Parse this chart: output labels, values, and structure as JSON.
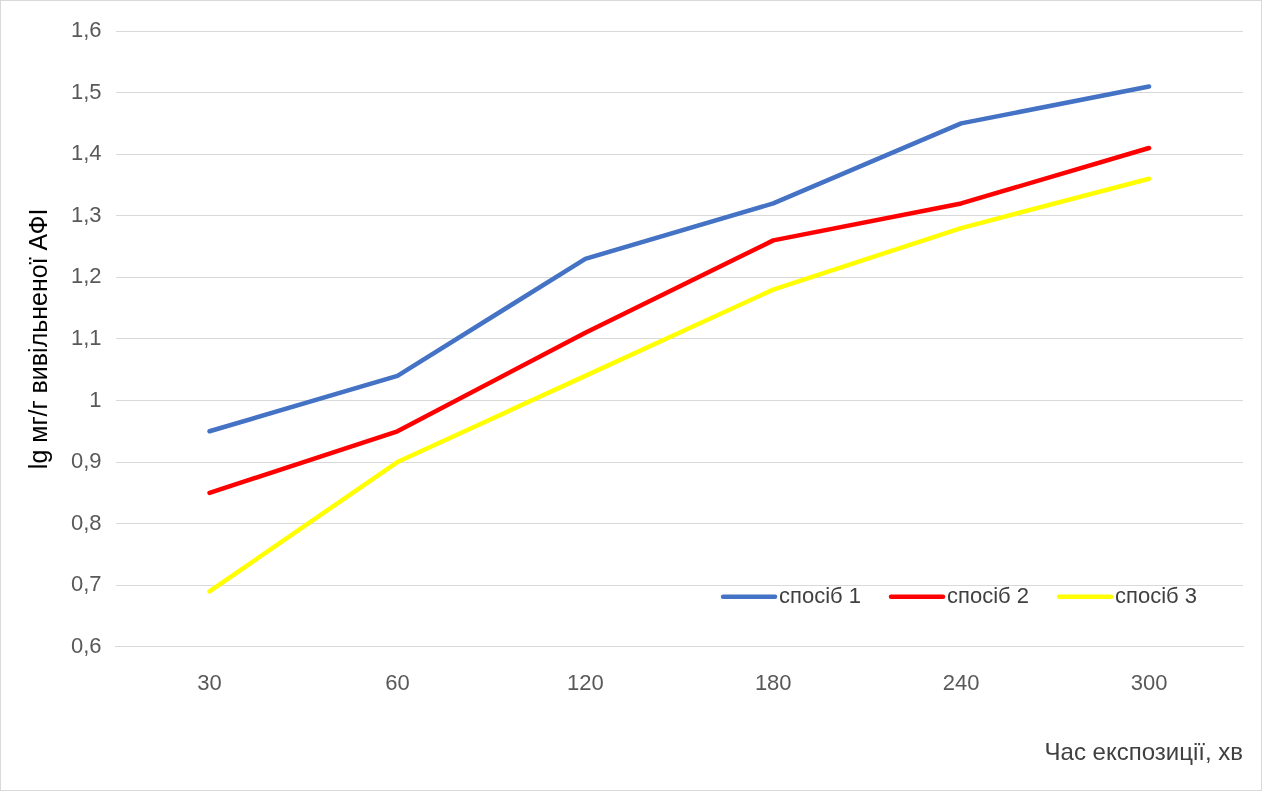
{
  "chart_data": {
    "type": "line",
    "xlabel": "Час експозиції, хв",
    "ylabel": "lg мг/г вивільненої АФІ",
    "categories": [
      "30",
      "60",
      "120",
      "180",
      "240",
      "300"
    ],
    "series": [
      {
        "name": "спосіб 1",
        "color": "#4472c4",
        "values": [
          0.95,
          1.04,
          1.23,
          1.32,
          1.45,
          1.51
        ]
      },
      {
        "name": "спосіб 2",
        "color": "#ff0000",
        "values": [
          0.85,
          0.95,
          1.11,
          1.26,
          1.32,
          1.41
        ]
      },
      {
        "name": "спосіб 3",
        "color": "#ffff00",
        "values": [
          0.69,
          0.9,
          1.04,
          1.18,
          1.28,
          1.36
        ]
      }
    ],
    "ylim": [
      0.6,
      1.6
    ],
    "yticks": [
      {
        "value": 0.6,
        "label": "0,6"
      },
      {
        "value": 0.7,
        "label": "0,7"
      },
      {
        "value": 0.8,
        "label": "0,8"
      },
      {
        "value": 0.9,
        "label": "0,9"
      },
      1,
      {
        "value": 1.1,
        "label": "1,1"
      },
      {
        "value": 1.2,
        "label": "1,2"
      },
      {
        "value": 1.3,
        "label": "1,3"
      },
      {
        "value": 1.4,
        "label": "1,4"
      },
      {
        "value": 1.5,
        "label": "1,5"
      },
      {
        "value": 1.6,
        "label": "1,6"
      }
    ],
    "grid": "y",
    "legend": "bottom right",
    "marker": "none",
    "line_style": "solid"
  }
}
